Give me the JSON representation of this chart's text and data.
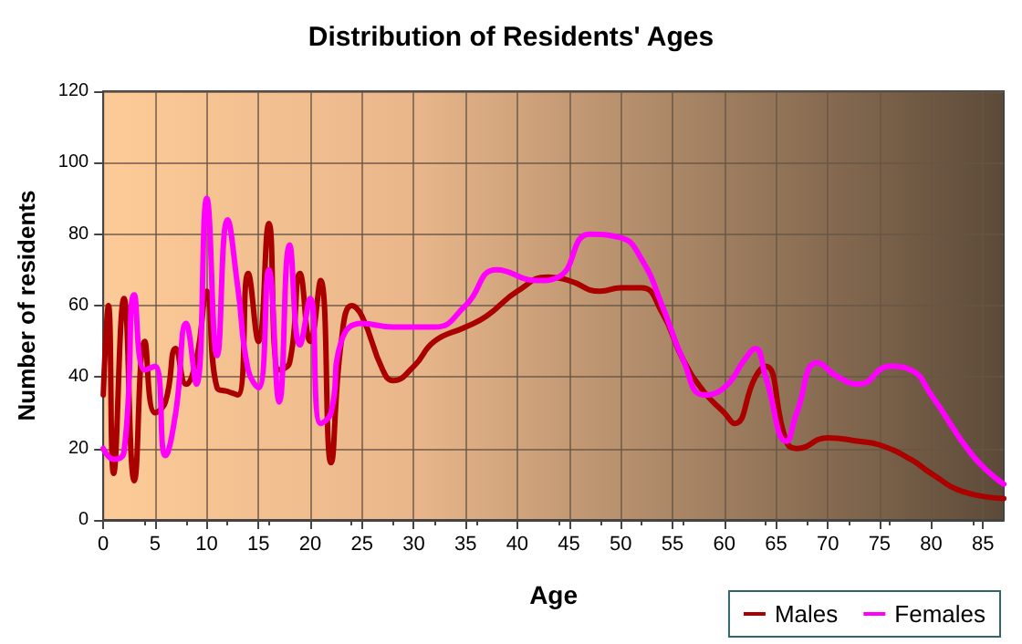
{
  "chart_data": {
    "type": "line",
    "title": "Distribution of Residents' Ages",
    "xlabel": "Age",
    "ylabel": "Number of residents",
    "xlim": [
      0,
      87
    ],
    "xticks": [
      0,
      5,
      10,
      15,
      20,
      25,
      30,
      35,
      40,
      45,
      50,
      55,
      60,
      65,
      70,
      75,
      80,
      85
    ],
    "ylim": [
      0,
      120
    ],
    "yticks": [
      0,
      20,
      40,
      60,
      80,
      100,
      120
    ],
    "grid": true,
    "legend": "bottom right",
    "marker": "none",
    "line_style": "solid",
    "series": [
      {
        "name": "Males",
        "color": "#aa0000",
        "x": [
          0,
          0.5,
          1,
          2,
          3,
          4,
          5,
          6,
          7,
          8,
          9,
          10,
          11,
          12,
          13,
          14,
          15,
          16,
          17,
          18,
          19,
          20,
          21,
          22,
          23,
          24,
          25,
          27,
          28,
          30,
          32,
          35,
          37,
          40,
          43,
          45,
          48,
          50,
          52,
          54,
          56,
          58,
          60,
          61,
          63,
          64,
          66,
          67,
          70,
          73,
          75,
          78,
          80,
          83,
          87
        ],
        "values": [
          35,
          60,
          13,
          62,
          11,
          50,
          30,
          33,
          48,
          38,
          45,
          64,
          37,
          36,
          35,
          69,
          50,
          83,
          42,
          44,
          69,
          50,
          67,
          16,
          50,
          60,
          57,
          42,
          39,
          43,
          50,
          54,
          57,
          64,
          68,
          67,
          64,
          65,
          65,
          58,
          45,
          36,
          30,
          27,
          40,
          43,
          22,
          20,
          23,
          22,
          21,
          17,
          13,
          8,
          6
        ]
      },
      {
        "name": "Females",
        "color": "#ff00ff",
        "x": [
          0,
          1,
          2,
          3,
          4,
          5,
          6,
          7,
          8,
          9,
          10,
          11,
          12,
          13,
          14,
          15,
          16,
          17,
          18,
          19,
          20,
          21,
          22,
          23,
          25,
          28,
          32,
          35,
          38,
          42,
          44,
          47,
          50,
          52,
          54,
          56,
          58,
          60,
          62,
          63,
          64,
          66,
          67,
          69,
          71,
          73,
          76,
          78,
          80,
          84,
          87
        ],
        "values": [
          20,
          17,
          19,
          63,
          42,
          43,
          18,
          30,
          55,
          38,
          90,
          46,
          84,
          65,
          42,
          37,
          70,
          33,
          77,
          49,
          62,
          27,
          30,
          50,
          55,
          54,
          54,
          60,
          70,
          67,
          68,
          80,
          79,
          73,
          60,
          45,
          35,
          37,
          45,
          48,
          40,
          22,
          30,
          44,
          40,
          38,
          43,
          42,
          35,
          18,
          10
        ]
      }
    ]
  }
}
